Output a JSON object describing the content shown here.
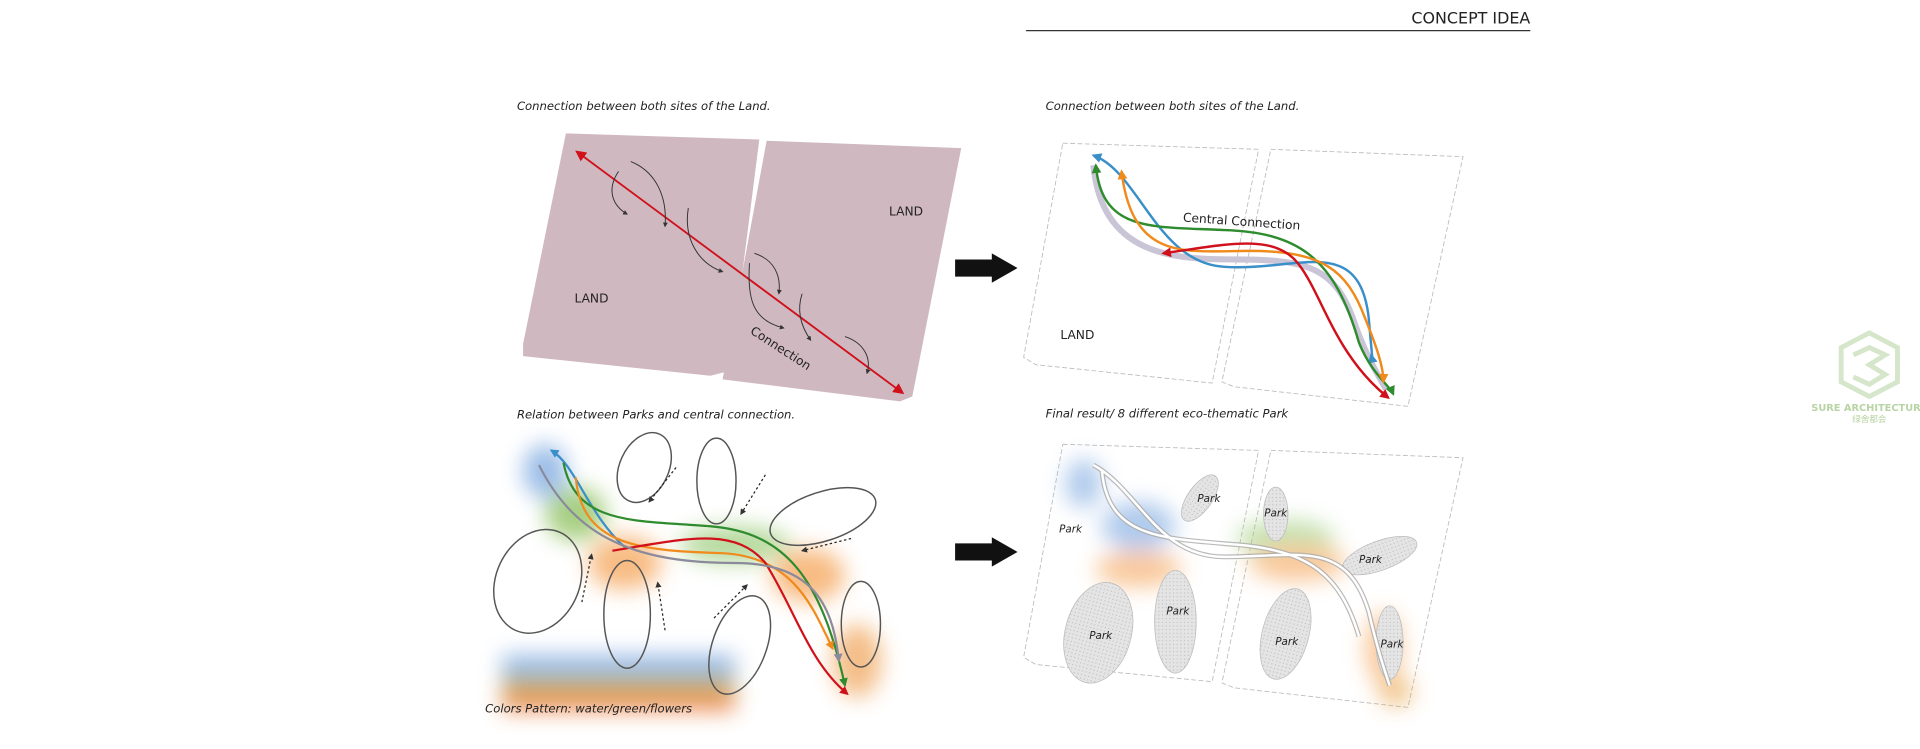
{
  "header": {
    "title": "CONCEPT IDEA"
  },
  "panels": [
    {
      "caption": "Connection between both sites of the Land.",
      "labels": [
        "LAND",
        "LAND",
        "Connection"
      ]
    },
    {
      "caption": "Connection between both sites of the Land.",
      "labels": [
        "Central Connection",
        "LAND"
      ]
    },
    {
      "caption": "Relation between Parks and central connection.",
      "labels": [
        "Colors Pattern: water/green/flowers"
      ]
    },
    {
      "caption": "Final result/ 8 different eco-thematic Park",
      "labels": [
        "Park",
        "Park",
        "Park",
        "Park",
        "Park",
        "Park",
        "Park",
        "Park"
      ]
    }
  ],
  "watermark": {
    "name": "SURE ARCHITECTURE",
    "subtitle": "绿舍都会"
  }
}
